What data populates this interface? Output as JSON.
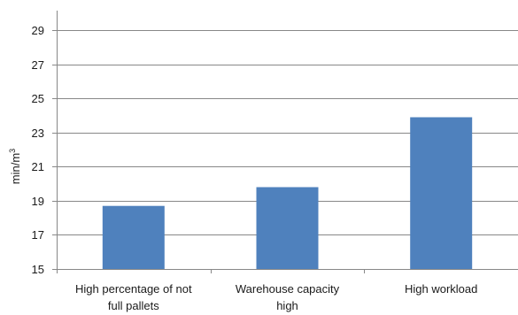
{
  "chart_data": {
    "type": "bar",
    "title": "",
    "xlabel": "",
    "ylabel": "min/m",
    "ylabel_superscript": "3",
    "ylim": [
      15,
      30
    ],
    "yticks": [
      15,
      17,
      19,
      21,
      23,
      25,
      27,
      29
    ],
    "grid": true,
    "categories": [
      [
        "High percentage of not",
        "full pallets"
      ],
      [
        "Warehouse capacity",
        "high"
      ],
      [
        "High workload"
      ]
    ],
    "values": [
      18.7,
      19.8,
      23.9
    ],
    "bar_color": "#4f81bd"
  }
}
